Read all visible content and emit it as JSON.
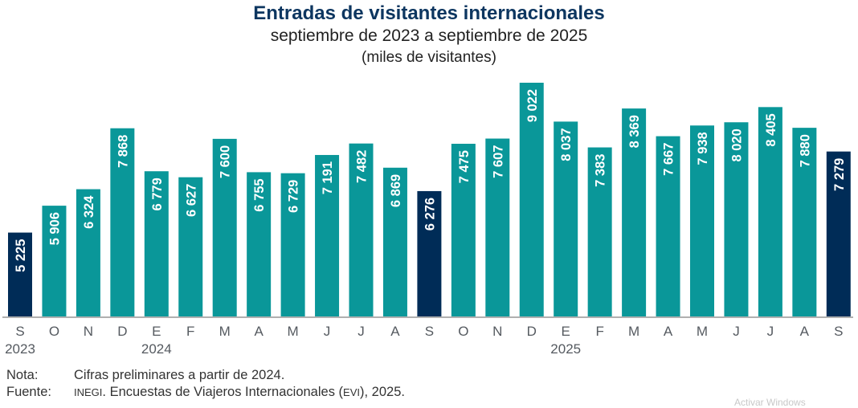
{
  "chart_data": {
    "type": "bar",
    "title": "Entradas de visitantes internacionales",
    "subtitle": "septiembre de 2023 a septiembre de 2025",
    "unit_label": "(miles de visitantes)",
    "xlabel": "",
    "ylabel": "",
    "ylim": [
      3100,
      9022
    ],
    "grid": false,
    "categories": [
      "S",
      "O",
      "N",
      "D",
      "E",
      "F",
      "M",
      "A",
      "M",
      "J",
      "J",
      "A",
      "S",
      "O",
      "N",
      "D",
      "E",
      "F",
      "M",
      "A",
      "M",
      "J",
      "J",
      "A",
      "S"
    ],
    "year_labels": [
      {
        "index": 0,
        "label": "2023"
      },
      {
        "index": 4,
        "label": "2024"
      },
      {
        "index": 16,
        "label": "2025"
      }
    ],
    "values": [
      5225,
      5906,
      6324,
      7868,
      6779,
      6627,
      7600,
      6755,
      6729,
      7191,
      7482,
      6869,
      6276,
      7475,
      7607,
      9022,
      8037,
      7383,
      8369,
      7667,
      7938,
      8020,
      8405,
      7880,
      7279
    ],
    "value_labels": [
      "5 225",
      "5 906",
      "6 324",
      "7 868",
      "6 779",
      "6 627",
      "7 600",
      "6 755",
      "6 729",
      "7 191",
      "7 482",
      "6 869",
      "6 276",
      "7 475",
      "7 607",
      "9 022",
      "8 037",
      "7 383",
      "8 369",
      "7 667",
      "7 938",
      "8 020",
      "8 405",
      "7 880",
      "7 279"
    ],
    "highlighted_indices": [
      0,
      12,
      24
    ],
    "colors": {
      "bar": "#0a9799",
      "highlight": "#002c57",
      "axis": "#b0b0b0",
      "tick_label": "#555a60",
      "title": "#0d3660"
    }
  },
  "notes": {
    "nota_label": "Nota:",
    "nota_text": "Cifras preliminares a partir de 2024.",
    "fuente_label": "Fuente:",
    "fuente_org": "INEGI",
    "fuente_text_1": ". Encuestas de Viajeros Internacionales (",
    "fuente_abbr": "EVI",
    "fuente_text_2": "), 2025."
  },
  "watermark": "Activar Windows"
}
